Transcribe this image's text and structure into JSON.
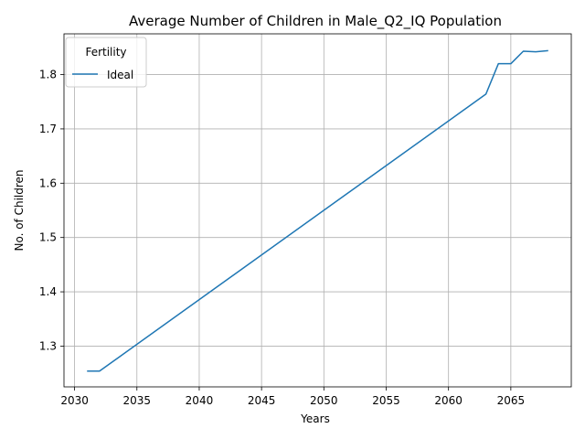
{
  "chart_data": {
    "type": "line",
    "title": "Average Number of Children in Male_Q2_IQ Population",
    "xlabel": "Years",
    "ylabel": "No. of Children",
    "xlim": [
      2029.15,
      2069.85
    ],
    "ylim": [
      1.225,
      1.875
    ],
    "xticks": [
      2030,
      2035,
      2040,
      2045,
      2050,
      2055,
      2060,
      2065
    ],
    "yticks": [
      1.3,
      1.4,
      1.5,
      1.6,
      1.7,
      1.8
    ],
    "grid": true,
    "legend": {
      "title": "Fertility",
      "placement": "top-left"
    },
    "series": [
      {
        "name": "Ideal",
        "color": "#1f77b4",
        "x": [
          2031,
          2032,
          2063,
          2064,
          2065,
          2066,
          2067,
          2068
        ],
        "y": [
          1.254,
          1.254,
          1.764,
          1.82,
          1.82,
          1.843,
          1.842,
          1.844
        ]
      }
    ]
  }
}
